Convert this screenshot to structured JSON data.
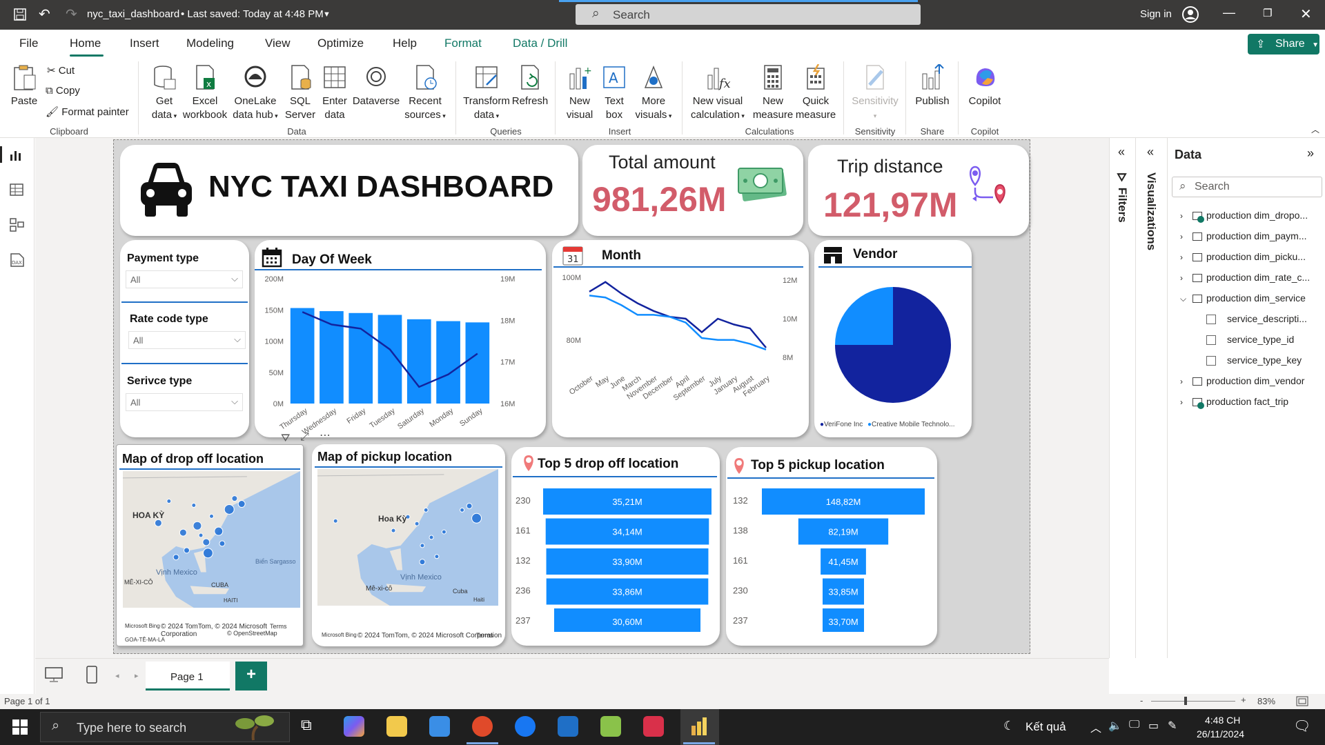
{
  "titlebar": {
    "filename": "nyc_taxi_dashboard",
    "saved": "• Last saved: Today at 4:48 PM",
    "search": "Search",
    "signin": "Sign in"
  },
  "menu": {
    "items": [
      "File",
      "Home",
      "Insert",
      "Modeling",
      "View",
      "Optimize",
      "Help",
      "Format",
      "Data / Drill"
    ],
    "share": "Share"
  },
  "ribbon": {
    "clipboard": {
      "paste": "Paste",
      "cut": "Cut",
      "copy": "Copy",
      "format_painter": "Format painter",
      "group": "Clipboard"
    },
    "data": {
      "get_data": "Get",
      "get_data2": "data",
      "excel": "Excel",
      "excel2": "workbook",
      "onelake": "OneLake",
      "onelake2": "data hub",
      "sql": "SQL",
      "sql2": "Server",
      "enter": "Enter",
      "enter2": "data",
      "dataverse": "Dataverse",
      "recent": "Recent",
      "recent2": "sources",
      "group": "Data"
    },
    "queries": {
      "transform": "Transform",
      "transform2": "data",
      "refresh": "Refresh",
      "group": "Queries"
    },
    "insert": {
      "new_visual": "New",
      "new_visual2": "visual",
      "text_box": "Text",
      "text_box2": "box",
      "more_visuals": "More",
      "more_visuals2": "visuals",
      "group": "Insert"
    },
    "calculations": {
      "new_visual_calc": "New visual",
      "new_visual_calc2": "calculation",
      "new_measure": "New",
      "new_measure2": "measure",
      "quick_measure": "Quick",
      "quick_measure2": "measure",
      "group": "Calculations"
    },
    "sensitivity": {
      "label": "Sensitivity",
      "group": "Sensitivity"
    },
    "share": {
      "publish": "Publish",
      "group": "Share"
    },
    "copilot": {
      "label": "Copilot",
      "group": "Copilot"
    }
  },
  "dashboard": {
    "title": "NYC TAXI DASHBOARD",
    "kpi_total": {
      "label": "Total amount",
      "value": "981,26M"
    },
    "kpi_trip": {
      "label": "Trip distance",
      "value": "121,97M"
    },
    "slicers": [
      {
        "label": "Payment type",
        "value": "All"
      },
      {
        "label": "Rate code type",
        "value": "All"
      },
      {
        "label": "Serivce type",
        "value": "All"
      }
    ],
    "maps": {
      "drop_title": "Map of drop off location",
      "pickup_title": "Map of pickup location",
      "drop_labels": {
        "country": "HOA KỲ",
        "mexico_gulf": "Vịnh Mexico",
        "sargasso": "Biển Sargasso",
        "mexico": "MÊ-XI-CÔ",
        "cuba": "CUBA",
        "haiti": "HAITI",
        "guatemala": "GOA-TÊ-MA-LA",
        "copy": "© 2024 TomTom, © 2024 Microsoft Corporation",
        "osm": "© OpenStreetMap",
        "terms": "Terms",
        "bing": "Microsoft Bing"
      },
      "pickup_labels": {
        "country": "Hoa Kỳ",
        "mexico_gulf": "Vịnh Mexico",
        "mexico": "Mê-xi-cô",
        "cuba": "Cuba",
        "haiti": "Haiti",
        "copy": "© 2024 TomTom, © 2024 Microsoft Corporation",
        "terms": "Terms",
        "bing": "Microsoft Bing"
      }
    },
    "colors": {
      "bar": "#118dff",
      "line_dark": "#12239e",
      "line_light": "#118dff",
      "kpi_value": "#d25c6a"
    }
  },
  "chart_data": [
    {
      "type": "bar",
      "title": "Day Of Week",
      "categories": [
        "Thursday",
        "Wednesday",
        "Friday",
        "Tuesday",
        "Saturday",
        "Monday",
        "Sunday"
      ],
      "series": [
        {
          "type": "bar",
          "values": [
            153,
            148,
            145,
            142,
            135,
            132,
            130
          ]
        },
        {
          "type": "line",
          "values": [
            18.2,
            17.9,
            17.8,
            17.3,
            16.4,
            16.7,
            17.2
          ]
        }
      ],
      "y_ticks": [
        "200M",
        "150M",
        "100M",
        "50M",
        "0M"
      ],
      "y2_ticks": [
        "19M",
        "18M",
        "17M",
        "16M"
      ],
      "ylim": [
        0,
        200
      ],
      "y2lim": [
        16,
        19
      ]
    },
    {
      "type": "line",
      "title": "Month",
      "categories": [
        "October",
        "May",
        "June",
        "March",
        "November",
        "December",
        "April",
        "September",
        "July",
        "January",
        "August",
        "February"
      ],
      "series": [
        {
          "values": [
            11.4,
            11.9,
            11.3,
            10.8,
            10.4,
            10.1,
            10.0,
            9.3,
            10.0,
            9.7,
            9.5,
            8.5
          ]
        },
        {
          "values": [
            11.2,
            11.1,
            10.7,
            10.2,
            10.2,
            10.1,
            9.8,
            9.0,
            8.9,
            8.9,
            8.7,
            8.4
          ]
        }
      ],
      "y_ticks": [
        "100M",
        "80M"
      ],
      "y2_ticks": [
        "12M",
        "10M",
        "8M"
      ],
      "y2lim": [
        8,
        12
      ]
    },
    {
      "type": "pie",
      "title": "Vendor",
      "legend": [
        "VeriFone Inc",
        "Creative Mobile Technolo..."
      ],
      "values": [
        75,
        25
      ],
      "colors": [
        "#12239e",
        "#118dff"
      ]
    },
    {
      "type": "bar",
      "title": "Top 5 drop off location",
      "categories": [
        "230",
        "161",
        "132",
        "236",
        "237"
      ],
      "values": [
        35.21,
        34.14,
        33.9,
        33.86,
        30.6
      ],
      "labels": [
        "35,21M",
        "34,14M",
        "33,90M",
        "33,86M",
        "30,60M"
      ]
    },
    {
      "type": "bar",
      "title": "Top 5 pickup location",
      "categories": [
        "132",
        "138",
        "161",
        "230",
        "237"
      ],
      "values": [
        148.82,
        82.19,
        41.45,
        33.85,
        33.7
      ],
      "labels": [
        "148,82M",
        "82,19M",
        "41,45M",
        "33,85M",
        "33,70M"
      ]
    }
  ],
  "panes": {
    "filters": "Filters",
    "visualizations": "Visualizations",
    "data": "Data",
    "search": "Search",
    "tree": [
      "production dim_dropo...",
      "production dim_paym...",
      "production dim_picku...",
      "production dim_rate_c...",
      "production dim_service",
      "service_descripti...",
      "service_type_id",
      "service_type_key",
      "production dim_vendor",
      "production fact_trip"
    ]
  },
  "pages": {
    "tab": "Page 1",
    "add": "+"
  },
  "status": {
    "page": "Page 1 of 1",
    "zoom": "83%"
  },
  "taskbar": {
    "search": "Type here to search",
    "weather": "Kết quả",
    "time": "4:48 CH",
    "date": "26/11/2024"
  }
}
